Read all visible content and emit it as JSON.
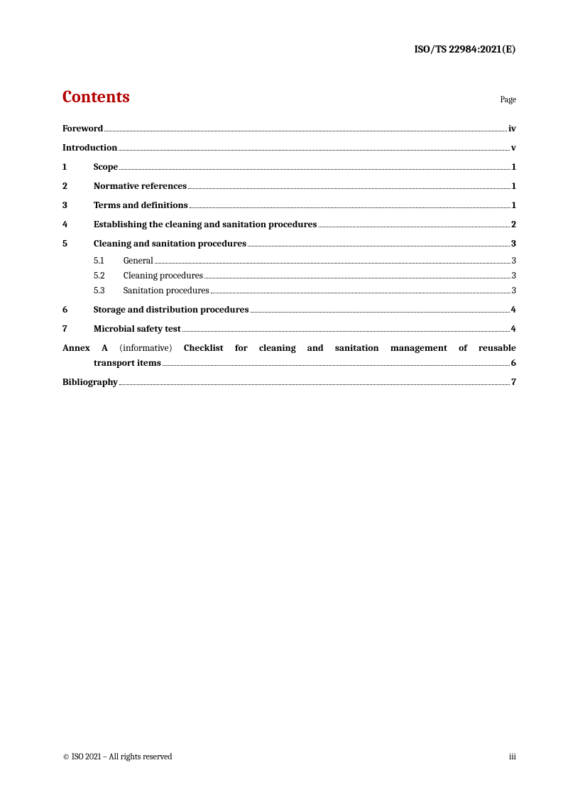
{
  "header": {
    "doc_id": "ISO/TS 22984:2021(E)"
  },
  "contents": {
    "title": "Contents",
    "page_label": "Page"
  },
  "toc": {
    "foreword": {
      "title": "Foreword",
      "page": "iv"
    },
    "introduction": {
      "title": "Introduction",
      "page": "v"
    },
    "s1": {
      "num": "1",
      "title": "Scope",
      "page": "1"
    },
    "s2": {
      "num": "2",
      "title": "Normative references",
      "page": "1"
    },
    "s3": {
      "num": "3",
      "title": "Terms and definitions",
      "page": "1"
    },
    "s4": {
      "num": "4",
      "title": "Establishing the cleaning and sanitation procedures",
      "page": "2"
    },
    "s5": {
      "num": "5",
      "title": "Cleaning and sanitation procedures",
      "page": "3",
      "sub1": {
        "num": "5.1",
        "title": "General",
        "page": "3"
      },
      "sub2": {
        "num": "5.2",
        "title": "Cleaning procedures",
        "page": "3"
      },
      "sub3": {
        "num": "5.3",
        "title": "Sanitation procedures",
        "page": "3"
      }
    },
    "s6": {
      "num": "6",
      "title": "Storage and distribution procedures",
      "page": "4"
    },
    "s7": {
      "num": "7",
      "title": "Microbial safety test",
      "page": "4"
    },
    "annex": {
      "label": "Annex A",
      "informative": "(informative)",
      "title_part1": "Checklist for cleaning and sanitation management of reusable",
      "title_part2": "transport items",
      "page": "6"
    },
    "bibliography": {
      "title": "Bibliography",
      "page": "7"
    }
  },
  "footer": {
    "copyright": "© ISO 2021 – All rights reserved",
    "page_num": "iii"
  },
  "colors": {
    "accent": "#b30000",
    "text": "#000000",
    "background": "#ffffff"
  },
  "typography": {
    "base_font": "Cambria, Georgia, serif",
    "title_size_pt": 18,
    "body_size_pt": 10,
    "header_size_pt": 11,
    "footer_size_pt": 9
  }
}
